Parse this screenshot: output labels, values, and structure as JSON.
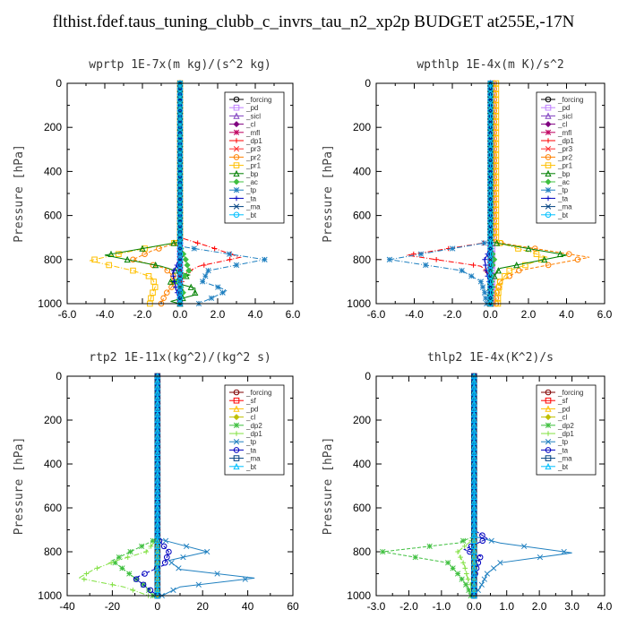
{
  "title": "flthist.fdef.taus_tuning_clubb_c_invrs_tau_n2_xp2p  BUDGET at255E,-17N",
  "chart_data": [
    {
      "type": "line",
      "title": "wprtp   1E-7x(m kg)/(s^2 kg)",
      "ylabel": "Pressure [hPa]",
      "xlim": [
        -6,
        6
      ],
      "ylim": [
        1000,
        0
      ],
      "y_inverted": true,
      "xticks": [
        "-6.0",
        "-4.0",
        "-2.0",
        "0.0",
        "2.0",
        "4.0",
        "6.0"
      ],
      "yticks": [
        "0",
        "200",
        "400",
        "600",
        "800",
        "1000"
      ],
      "legend": "top-right",
      "legend_labels": [
        "_forcing",
        "_pd",
        "_sicl",
        "_cl",
        "_mfl",
        "_dp1",
        "_pr3",
        "_pr2",
        "_pr1",
        "_bp",
        "_ac",
        "_tp",
        "_ta",
        "_ma",
        "_bt"
      ],
      "series": [
        {
          "name": "_forcing",
          "color": "#000000",
          "p": [
            0,
            1000
          ],
          "x": [
            0,
            0
          ]
        },
        {
          "name": "_pd",
          "color": "#c080ff",
          "p": [
            0,
            1000
          ],
          "x": [
            0,
            0
          ]
        },
        {
          "name": "_sicl",
          "color": "#8040c0",
          "p": [
            0,
            1000
          ],
          "x": [
            0,
            0
          ]
        },
        {
          "name": "_cl",
          "color": "#800080",
          "p": [
            0,
            1000
          ],
          "x": [
            0,
            0
          ]
        },
        {
          "name": "_mfl",
          "color": "#c00060",
          "p": [
            0,
            1000
          ],
          "x": [
            0,
            0
          ]
        },
        {
          "name": "_dp1",
          "color": "#ff0000",
          "p": [
            0,
            700,
            740,
            790,
            830,
            860,
            900,
            940,
            980,
            1000
          ],
          "x": [
            0,
            0,
            1.5,
            3.2,
            1.0,
            0.3,
            0.1,
            0,
            0,
            0
          ]
        },
        {
          "name": "_pr3",
          "color": "#ff3030",
          "p": [
            0,
            1000
          ],
          "x": [
            0,
            0
          ]
        },
        {
          "name": "_pr2",
          "color": "#ff8000",
          "p": [
            0,
            720,
            760,
            800,
            840,
            880,
            920,
            960,
            1000
          ],
          "x": [
            0,
            0,
            -1.5,
            -2.5,
            -0.8,
            -0.3,
            -0.4,
            -0.8,
            -1.0
          ]
        },
        {
          "name": "_pr1",
          "color": "#ffc000",
          "p": [
            0,
            720,
            760,
            805,
            850,
            880,
            920,
            960,
            990
          ],
          "x": [
            0,
            0,
            -2.5,
            -4.8,
            -2.5,
            -1.5,
            -1.3,
            -1.5,
            -1.6
          ]
        },
        {
          "name": "_bp",
          "color": "#008000",
          "p": [
            0,
            720,
            780,
            830,
            870,
            900,
            930,
            960,
            990,
            1000
          ],
          "x": [
            0,
            0,
            -4.0,
            -1.0,
            0.5,
            -0.5,
            0.8,
            0.8,
            -0.5,
            0
          ]
        },
        {
          "name": "_ac",
          "color": "#40c040",
          "p": [
            0,
            740,
            800,
            860,
            900,
            940,
            990
          ],
          "x": [
            0,
            0,
            0.3,
            0.5,
            -0.2,
            0.2,
            0
          ]
        },
        {
          "name": "_tp",
          "color": "#2080c0",
          "p": [
            0,
            740,
            800,
            850,
            900,
            940,
            970,
            1000
          ],
          "x": [
            0,
            0,
            4.5,
            1.5,
            1.2,
            2.5,
            1.8,
            1.0
          ]
        },
        {
          "name": "_ta",
          "color": "#0000c0",
          "p": [
            0,
            800,
            860,
            900,
            940,
            980
          ],
          "x": [
            0,
            0,
            -0.4,
            -0.3,
            -0.2,
            0
          ]
        },
        {
          "name": "_ma",
          "color": "#004080",
          "p": [
            0,
            1000
          ],
          "x": [
            0,
            0
          ]
        },
        {
          "name": "_bt",
          "color": "#00c0ff",
          "p": [
            0,
            1000
          ],
          "x": [
            0,
            0
          ]
        }
      ]
    },
    {
      "type": "line",
      "title": "wpthlp   1E-4x(m K)/s^2",
      "ylabel": "Pressure [hPa]",
      "xlim": [
        -6,
        6
      ],
      "ylim": [
        1000,
        0
      ],
      "y_inverted": true,
      "xticks": [
        "-6.0",
        "-4.0",
        "-2.0",
        "0.0",
        "2.0",
        "4.0",
        "6.0"
      ],
      "yticks": [
        "0",
        "200",
        "400",
        "600",
        "800",
        "1000"
      ],
      "legend": "top-right",
      "legend_labels": [
        "_forcing",
        "_pd",
        "_sicl",
        "_cl",
        "_mfl",
        "_dp1",
        "_pr3",
        "_pr2",
        "_pr1",
        "_bp",
        "_ac",
        "_tp",
        "_ta",
        "_ma",
        "_bt"
      ],
      "series": [
        {
          "name": "_forcing",
          "color": "#000000",
          "p": [
            0,
            1000
          ],
          "x": [
            0,
            0
          ]
        },
        {
          "name": "_pd",
          "color": "#c080ff",
          "p": [
            0,
            1000
          ],
          "x": [
            0.1,
            0.1
          ]
        },
        {
          "name": "_sicl",
          "color": "#8040c0",
          "p": [
            0,
            1000
          ],
          "x": [
            0,
            0
          ]
        },
        {
          "name": "_cl",
          "color": "#800080",
          "p": [
            0,
            1000
          ],
          "x": [
            0,
            0
          ]
        },
        {
          "name": "_mfl",
          "color": "#c00060",
          "p": [
            0,
            1000
          ],
          "x": [
            0,
            0
          ]
        },
        {
          "name": "_dp1",
          "color": "#ff0000",
          "p": [
            0,
            720,
            780,
            830,
            870,
            920,
            980
          ],
          "x": [
            0,
            0,
            -4.4,
            -0.5,
            0,
            0,
            0
          ]
        },
        {
          "name": "_pr3",
          "color": "#ff3030",
          "p": [
            0,
            1000
          ],
          "x": [
            0,
            0
          ]
        },
        {
          "name": "_pr2",
          "color": "#ff8000",
          "p": [
            0,
            720,
            790,
            850,
            900,
            960,
            1000
          ],
          "x": [
            0.2,
            0.2,
            5.2,
            1.5,
            0.5,
            0.3,
            0.3
          ]
        },
        {
          "name": "_pr1",
          "color": "#ffc000",
          "p": [
            0,
            720,
            790,
            850,
            900,
            960,
            1000
          ],
          "x": [
            0.3,
            0.3,
            3.0,
            1.0,
            0.5,
            0.4,
            0.4
          ]
        },
        {
          "name": "_bp",
          "color": "#008000",
          "p": [
            0,
            720,
            780,
            840,
            900,
            960,
            1000
          ],
          "x": [
            0,
            0,
            4.0,
            0.5,
            0,
            0,
            0
          ]
        },
        {
          "name": "_ac",
          "color": "#40c040",
          "p": [
            0,
            740,
            800,
            860,
            920,
            990
          ],
          "x": [
            0,
            0,
            0.2,
            0,
            0.1,
            0
          ]
        },
        {
          "name": "_tp",
          "color": "#2080c0",
          "p": [
            0,
            720,
            800,
            850,
            900,
            950,
            1000
          ],
          "x": [
            0,
            0,
            -5.3,
            -1.5,
            -0.5,
            -0.3,
            -0.2
          ]
        },
        {
          "name": "_ta",
          "color": "#0000c0",
          "p": [
            0,
            750,
            800,
            860,
            920
          ],
          "x": [
            0,
            0,
            -0.3,
            -0.2,
            0
          ]
        },
        {
          "name": "_ma",
          "color": "#004080",
          "p": [
            0,
            1000
          ],
          "x": [
            0,
            0
          ]
        },
        {
          "name": "_bt",
          "color": "#00c0ff",
          "p": [
            0,
            1000
          ],
          "x": [
            0,
            0
          ]
        }
      ]
    },
    {
      "type": "line",
      "title": "rtp2   1E-11x(kg^2)/(kg^2 s)",
      "ylabel": "Pressure [hPa]",
      "xlim": [
        -40,
        60
      ],
      "ylim": [
        1000,
        0
      ],
      "y_inverted": true,
      "xticks": [
        "-40",
        "-20",
        "0",
        "20",
        "40",
        "60"
      ],
      "yticks": [
        "0",
        "200",
        "400",
        "600",
        "800",
        "1000"
      ],
      "legend": "top-right",
      "legend_labels": [
        "_forcing",
        "_sf",
        "_pd",
        "_cl",
        "_dp2",
        "_dp1",
        "_tp",
        "_ta",
        "_ma",
        "_bt"
      ],
      "series": [
        {
          "name": "_forcing",
          "color": "#800000",
          "p": [
            0,
            1000
          ],
          "x": [
            0,
            0
          ]
        },
        {
          "name": "_sf",
          "color": "#ff0000",
          "p": [
            0,
            1000
          ],
          "x": [
            0,
            0
          ]
        },
        {
          "name": "_pd",
          "color": "#ffc000",
          "p": [
            0,
            1000
          ],
          "x": [
            0,
            0
          ]
        },
        {
          "name": "_cl",
          "color": "#c0c000",
          "p": [
            0,
            1000
          ],
          "x": [
            0,
            0
          ]
        },
        {
          "name": "_dp2",
          "color": "#40c040",
          "p": [
            0,
            740,
            800,
            840,
            880,
            920,
            960,
            1000
          ],
          "x": [
            0,
            0,
            -12,
            -20,
            -15,
            -10,
            -5,
            -2
          ]
        },
        {
          "name": "_dp1",
          "color": "#80e040",
          "p": [
            0,
            740,
            800,
            840,
            880,
            920,
            960,
            1000
          ],
          "x": [
            0,
            0,
            -5,
            -18,
            -28,
            -35,
            -15,
            -4
          ]
        },
        {
          "name": "_tp",
          "color": "#2080c0",
          "p": [
            0,
            740,
            800,
            840,
            880,
            920,
            960,
            1000
          ],
          "x": [
            0,
            0,
            22,
            5,
            10,
            43,
            10,
            2
          ]
        },
        {
          "name": "_ta",
          "color": "#0000c0",
          "p": [
            0,
            740,
            800,
            860,
            920,
            960,
            1000
          ],
          "x": [
            0,
            0,
            5,
            3,
            -10,
            -5,
            0
          ]
        },
        {
          "name": "_ma",
          "color": "#004080",
          "p": [
            0,
            1000
          ],
          "x": [
            0,
            0
          ]
        },
        {
          "name": "_bt",
          "color": "#00c0ff",
          "p": [
            0,
            1000
          ],
          "x": [
            0,
            0
          ]
        }
      ]
    },
    {
      "type": "line",
      "title": "thlp2   1E-4x(K^2)/s",
      "ylabel": "Pressure [hPa]",
      "xlim": [
        -3,
        4
      ],
      "ylim": [
        1000,
        0
      ],
      "y_inverted": true,
      "xticks": [
        "-3.0",
        "-2.0",
        "-1.0",
        "0.0",
        "1.0",
        "2.0",
        "3.0",
        "4.0"
      ],
      "yticks": [
        "0",
        "200",
        "400",
        "600",
        "800",
        "1000"
      ],
      "legend": "top-right",
      "legend_labels": [
        "_forcing",
        "_sf",
        "_pd",
        "_cl",
        "_dp2",
        "_dp1",
        "_tp",
        "_ta",
        "_ma",
        "_bt"
      ],
      "series": [
        {
          "name": "_forcing",
          "color": "#800000",
          "p": [
            0,
            1000
          ],
          "x": [
            0,
            0
          ]
        },
        {
          "name": "_sf",
          "color": "#ff0000",
          "p": [
            0,
            1000
          ],
          "x": [
            0,
            0
          ]
        },
        {
          "name": "_pd",
          "color": "#ffc000",
          "p": [
            0,
            1000
          ],
          "x": [
            0,
            0
          ]
        },
        {
          "name": "_cl",
          "color": "#c0c000",
          "p": [
            0,
            1000
          ],
          "x": [
            0,
            0
          ]
        },
        {
          "name": "_dp2",
          "color": "#40c040",
          "p": [
            0,
            730,
            760,
            800,
            850,
            900,
            960,
            1000
          ],
          "x": [
            0,
            0,
            -0.5,
            -2.8,
            -0.8,
            -0.5,
            -0.2,
            -0.1
          ]
        },
        {
          "name": "_dp1",
          "color": "#80e040",
          "p": [
            0,
            740,
            800,
            860,
            920,
            980
          ],
          "x": [
            0,
            0,
            -0.5,
            -0.3,
            -0.2,
            0
          ]
        },
        {
          "name": "_tp",
          "color": "#2080c0",
          "p": [
            0,
            730,
            760,
            805,
            850,
            900,
            960,
            1000
          ],
          "x": [
            0,
            0,
            0.8,
            3.0,
            0.8,
            0.4,
            0.2,
            0
          ]
        },
        {
          "name": "_ta",
          "color": "#0000c0",
          "p": [
            0,
            700,
            740,
            790,
            820,
            860,
            920
          ],
          "x": [
            0,
            0,
            0.4,
            -0.3,
            0.2,
            0.1,
            0
          ]
        },
        {
          "name": "_ma",
          "color": "#004080",
          "p": [
            0,
            1000
          ],
          "x": [
            0,
            0
          ]
        },
        {
          "name": "_bt",
          "color": "#00c0ff",
          "p": [
            0,
            1000
          ],
          "x": [
            0,
            0
          ]
        }
      ]
    }
  ]
}
